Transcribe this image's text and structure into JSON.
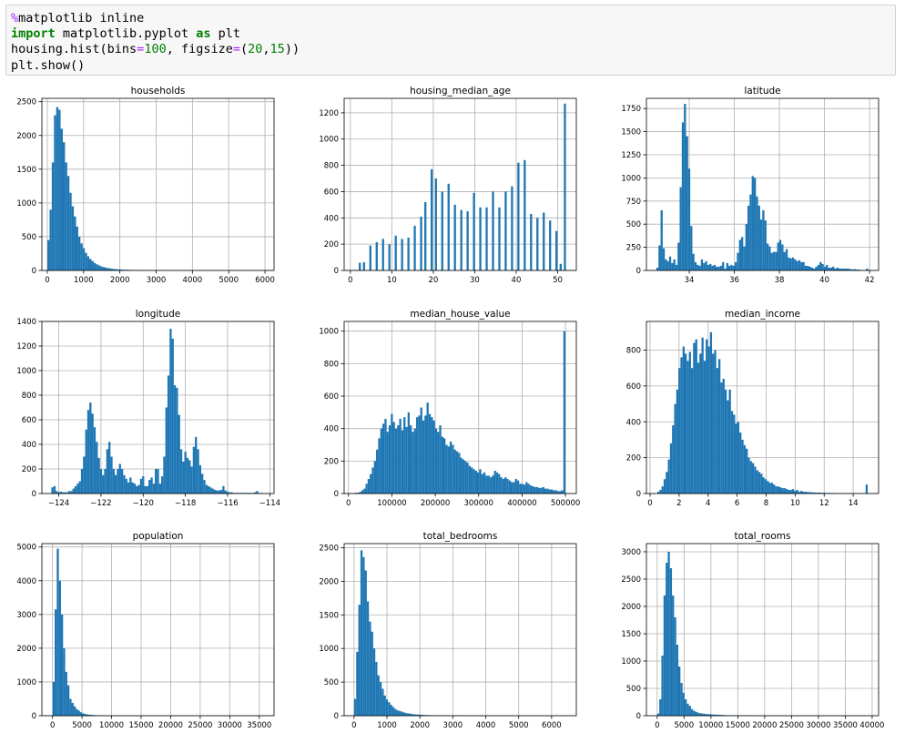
{
  "code": {
    "lines": [
      [
        {
          "t": "%",
          "c": "magic"
        },
        {
          "t": "matplotlib inline",
          "c": ""
        }
      ],
      [
        {
          "t": "import",
          "c": "kw"
        },
        {
          "t": " matplotlib.pyplot ",
          "c": ""
        },
        {
          "t": "as",
          "c": "kw"
        },
        {
          "t": " plt",
          "c": ""
        }
      ],
      [
        {
          "t": "housing.hist(bins",
          "c": ""
        },
        {
          "t": "=",
          "c": "op"
        },
        {
          "t": "100",
          "c": "num"
        },
        {
          "t": ", figsize",
          "c": ""
        },
        {
          "t": "=",
          "c": "op"
        },
        {
          "t": "(",
          "c": ""
        },
        {
          "t": "20",
          "c": "num"
        },
        {
          "t": ",",
          "c": ""
        },
        {
          "t": "15",
          "c": "num"
        },
        {
          "t": "))",
          "c": ""
        }
      ],
      [
        {
          "t": "plt.show()",
          "c": ""
        }
      ]
    ]
  },
  "colors": {
    "bar": "#1f77b4",
    "grid": "#b0b0b0",
    "axis": "#000000"
  },
  "chart_data": [
    {
      "type": "bar",
      "title": "households",
      "xlim": [
        -150,
        6250
      ],
      "ylim": [
        0,
        2550
      ],
      "xticks": [
        0,
        1000,
        2000,
        3000,
        4000,
        5000,
        6000
      ],
      "yticks": [
        0,
        500,
        1000,
        1500,
        2000,
        2500
      ],
      "bin_start": 1,
      "bin_width": 60.8,
      "values": [
        450,
        900,
        1600,
        2300,
        2420,
        2380,
        2100,
        1900,
        1600,
        1400,
        1150,
        950,
        800,
        650,
        500,
        400,
        330,
        260,
        210,
        170,
        140,
        110,
        90,
        75,
        60,
        50,
        42,
        35,
        30,
        25,
        20,
        18,
        15,
        13,
        11,
        10,
        9,
        8,
        7,
        6,
        5,
        5,
        4,
        4,
        3,
        3,
        3,
        2,
        2,
        2,
        2,
        2,
        1,
        1,
        1,
        1,
        1,
        1,
        1,
        1,
        1,
        1,
        1,
        1,
        1,
        1,
        1,
        1,
        1,
        1,
        1,
        1,
        1,
        1,
        1,
        1,
        1,
        1,
        1,
        1,
        1,
        1,
        1,
        1,
        1,
        1,
        1,
        1,
        1,
        1,
        1,
        1,
        1,
        1,
        1,
        1,
        1,
        1,
        1,
        2
      ]
    },
    {
      "type": "bar",
      "title": "housing_median_age",
      "xlim": [
        -1.5,
        54.5
      ],
      "ylim": [
        0,
        1310
      ],
      "xticks": [
        0,
        10,
        20,
        30,
        40,
        50
      ],
      "yticks": [
        0,
        200,
        400,
        600,
        800,
        1000,
        1200
      ],
      "bin_start": 1,
      "bin_width": 0.51,
      "values": [
        4,
        0,
        58,
        0,
        62,
        0,
        0,
        190,
        0,
        0,
        215,
        0,
        0,
        240,
        0,
        0,
        200,
        0,
        0,
        265,
        0,
        0,
        240,
        0,
        0,
        250,
        0,
        0,
        340,
        0,
        0,
        410,
        0,
        520,
        0,
        0,
        770,
        0,
        700,
        0,
        0,
        600,
        0,
        0,
        660,
        0,
        0,
        500,
        0,
        0,
        460,
        0,
        0,
        450,
        0,
        0,
        590,
        0,
        0,
        480,
        0,
        0,
        480,
        0,
        0,
        600,
        0,
        0,
        480,
        0,
        0,
        600,
        0,
        0,
        640,
        0,
        0,
        820,
        0,
        0,
        840,
        0,
        0,
        430,
        0,
        0,
        400,
        0,
        0,
        440,
        0,
        0,
        380,
        0,
        0,
        300,
        0,
        50,
        0,
        1270
      ]
    },
    {
      "type": "bar",
      "title": "latitude",
      "xlim": [
        32.1,
        42.4
      ],
      "ylim": [
        0,
        1860
      ],
      "xticks": [
        34,
        36,
        38,
        40,
        42
      ],
      "yticks": [
        0,
        250,
        500,
        750,
        1000,
        1250,
        1500,
        1750
      ],
      "bin_start": 32.54,
      "bin_width": 0.094,
      "values": [
        30,
        270,
        650,
        240,
        120,
        100,
        150,
        80,
        120,
        60,
        300,
        900,
        1600,
        1800,
        1450,
        1100,
        480,
        180,
        90,
        60,
        50,
        120,
        80,
        100,
        60,
        70,
        50,
        60,
        40,
        40,
        50,
        90,
        20,
        80,
        50,
        60,
        50,
        90,
        190,
        330,
        360,
        260,
        500,
        700,
        820,
        1020,
        1000,
        800,
        700,
        550,
        650,
        540,
        290,
        260,
        190,
        200,
        200,
        300,
        330,
        280,
        200,
        230,
        140,
        130,
        140,
        120,
        100,
        110,
        90,
        90,
        50,
        50,
        40,
        30,
        20,
        40,
        60,
        90,
        70,
        40,
        60,
        30,
        30,
        40,
        20,
        30,
        20,
        20,
        20,
        20,
        20,
        15,
        10,
        15,
        10,
        10,
        5,
        5,
        5,
        20
      ]
    },
    {
      "type": "bar",
      "title": "longitude",
      "xlim": [
        -124.8,
        -113.8
      ],
      "ylim": [
        0,
        1400
      ],
      "xticks": [
        -124,
        -122,
        -120,
        -118,
        -116,
        -114
      ],
      "yticks": [
        0,
        200,
        400,
        600,
        800,
        1000,
        1200,
        1400
      ],
      "bin_start": -124.35,
      "bin_width": 0.1,
      "values": [
        50,
        60,
        20,
        10,
        15,
        10,
        10,
        10,
        20,
        20,
        40,
        60,
        80,
        100,
        200,
        300,
        520,
        680,
        740,
        650,
        540,
        420,
        290,
        200,
        150,
        200,
        360,
        420,
        300,
        200,
        150,
        200,
        240,
        200,
        150,
        120,
        90,
        130,
        90,
        80,
        60,
        70,
        120,
        140,
        60,
        60,
        110,
        130,
        80,
        200,
        200,
        80,
        140,
        300,
        700,
        960,
        1340,
        1260,
        880,
        860,
        640,
        360,
        260,
        340,
        290,
        270,
        220,
        380,
        460,
        360,
        230,
        160,
        110,
        70,
        60,
        50,
        40,
        30,
        25,
        25,
        30,
        60,
        25,
        15,
        10,
        10,
        5,
        5,
        5,
        5,
        5,
        5,
        5,
        5,
        5,
        5,
        10,
        20,
        5,
        5
      ]
    },
    {
      "type": "bar",
      "title": "median_house_value",
      "xlim": [
        -10000,
        525000
      ],
      "ylim": [
        0,
        1060
      ],
      "xticks": [
        0,
        100000,
        200000,
        300000,
        400000,
        500000
      ],
      "yticks": [
        0,
        200,
        400,
        600,
        800,
        1000
      ],
      "bin_start": 14999,
      "bin_width": 4850,
      "values": [
        5,
        5,
        10,
        20,
        30,
        60,
        90,
        120,
        160,
        200,
        270,
        340,
        400,
        430,
        460,
        380,
        420,
        490,
        440,
        400,
        420,
        460,
        390,
        470,
        410,
        500,
        420,
        380,
        400,
        470,
        480,
        530,
        450,
        480,
        560,
        490,
        470,
        450,
        400,
        380,
        420,
        350,
        340,
        300,
        290,
        320,
        300,
        270,
        260,
        250,
        220,
        210,
        200,
        190,
        170,
        160,
        150,
        140,
        130,
        150,
        120,
        130,
        110,
        110,
        100,
        110,
        140,
        130,
        120,
        100,
        90,
        100,
        90,
        80,
        70,
        70,
        90,
        80,
        60,
        60,
        55,
        70,
        60,
        50,
        45,
        40,
        40,
        35,
        35,
        40,
        30,
        30,
        25,
        25,
        20,
        20,
        15,
        15,
        20,
        1000
      ]
    },
    {
      "type": "bar",
      "title": "median_income",
      "xlim": [
        -0.25,
        15.75
      ],
      "ylim": [
        0,
        960
      ],
      "xticks": [
        0,
        2,
        4,
        6,
        8,
        10,
        12,
        14
      ],
      "yticks": [
        0,
        200,
        400,
        600,
        800
      ],
      "bin_start": 0.5,
      "bin_width": 0.145,
      "values": [
        10,
        20,
        40,
        80,
        120,
        190,
        280,
        380,
        500,
        580,
        700,
        760,
        820,
        780,
        740,
        790,
        700,
        840,
        860,
        730,
        780,
        870,
        740,
        860,
        820,
        900,
        780,
        800,
        700,
        750,
        620,
        640,
        580,
        520,
        580,
        460,
        440,
        390,
        400,
        340,
        300,
        270,
        250,
        200,
        180,
        170,
        150,
        130,
        120,
        110,
        90,
        80,
        70,
        60,
        60,
        50,
        40,
        40,
        35,
        30,
        30,
        25,
        20,
        20,
        25,
        15,
        20,
        10,
        15,
        10,
        10,
        8,
        8,
        6,
        6,
        5,
        5,
        5,
        4,
        4,
        3,
        3,
        3,
        3,
        2,
        2,
        2,
        2,
        2,
        1,
        1,
        1,
        1,
        1,
        1,
        1,
        1,
        1,
        1,
        50
      ]
    },
    {
      "type": "bar",
      "title": "population",
      "xlim": [
        -1800,
        37500
      ],
      "ylim": [
        0,
        5100
      ],
      "xticks": [
        0,
        5000,
        10000,
        15000,
        20000,
        25000,
        30000,
        35000
      ],
      "yticks": [
        0,
        1000,
        2000,
        3000,
        4000,
        5000
      ],
      "bin_start": 3,
      "bin_width": 357,
      "values": [
        1000,
        3150,
        4950,
        4000,
        3000,
        2000,
        1300,
        900,
        500,
        380,
        280,
        200,
        150,
        100,
        70,
        50,
        40,
        30,
        25,
        20,
        15,
        12,
        10,
        8,
        6,
        5,
        4,
        3,
        3,
        2,
        2,
        2,
        1,
        1,
        1,
        1,
        1,
        1,
        1,
        1,
        1,
        1,
        1,
        1,
        1,
        1,
        1,
        1,
        1,
        1,
        1,
        1,
        1,
        1,
        1,
        1,
        1,
        1,
        1,
        1,
        1,
        1,
        1,
        1,
        1,
        1,
        1,
        1,
        1,
        1,
        1,
        1,
        1,
        1,
        1,
        1,
        1,
        1,
        1,
        1,
        1,
        1,
        1,
        1,
        1,
        1,
        1,
        1,
        1,
        1,
        1,
        1,
        1,
        1,
        1,
        1,
        1,
        1,
        1,
        1
      ]
    },
    {
      "type": "bar",
      "title": "total_bedrooms",
      "xlim": [
        -300,
        6750
      ],
      "ylim": [
        0,
        2560
      ],
      "xticks": [
        0,
        1000,
        2000,
        3000,
        4000,
        5000,
        6000
      ],
      "yticks": [
        0,
        500,
        1000,
        1500,
        2000,
        2500
      ],
      "bin_start": 1,
      "bin_width": 64.45,
      "values": [
        250,
        950,
        1650,
        2460,
        2360,
        2160,
        1700,
        1400,
        1250,
        1000,
        800,
        600,
        500,
        400,
        300,
        240,
        200,
        160,
        130,
        100,
        80,
        70,
        60,
        50,
        40,
        35,
        30,
        25,
        20,
        18,
        16,
        14,
        12,
        10,
        9,
        8,
        7,
        6,
        6,
        5,
        5,
        4,
        4,
        3,
        3,
        3,
        2,
        2,
        2,
        2,
        2,
        2,
        1,
        1,
        1,
        1,
        1,
        1,
        1,
        1,
        1,
        1,
        1,
        1,
        1,
        1,
        1,
        1,
        1,
        1,
        1,
        1,
        1,
        1,
        1,
        1,
        1,
        1,
        1,
        1,
        1,
        1,
        1,
        1,
        1,
        1,
        1,
        1,
        1,
        1,
        1,
        1,
        1,
        1,
        1,
        1,
        1,
        1,
        1,
        1
      ]
    },
    {
      "type": "bar",
      "title": "total_rooms",
      "xlim": [
        -2000,
        41200
      ],
      "ylim": [
        0,
        3150
      ],
      "xticks": [
        0,
        5000,
        10000,
        15000,
        20000,
        25000,
        30000,
        35000,
        40000
      ],
      "yticks": [
        0,
        500,
        1000,
        1500,
        2000,
        2500,
        3000
      ],
      "bin_start": 2,
      "bin_width": 393,
      "values": [
        40,
        300,
        1100,
        2200,
        2800,
        3000,
        2700,
        2200,
        1800,
        1300,
        900,
        600,
        420,
        300,
        220,
        180,
        120,
        90,
        70,
        55,
        45,
        40,
        35,
        30,
        28,
        25,
        22,
        20,
        18,
        16,
        14,
        12,
        10,
        9,
        8,
        7,
        6,
        5,
        5,
        4,
        4,
        3,
        3,
        3,
        2,
        2,
        2,
        2,
        2,
        2,
        1,
        1,
        1,
        1,
        1,
        1,
        1,
        1,
        1,
        1,
        1,
        1,
        1,
        1,
        1,
        1,
        1,
        1,
        1,
        1,
        1,
        1,
        1,
        1,
        1,
        1,
        1,
        1,
        1,
        1,
        1,
        1,
        1,
        1,
        1,
        1,
        1,
        1,
        1,
        1,
        1,
        1,
        1,
        1,
        1,
        1,
        1,
        1,
        1,
        1
      ]
    }
  ]
}
